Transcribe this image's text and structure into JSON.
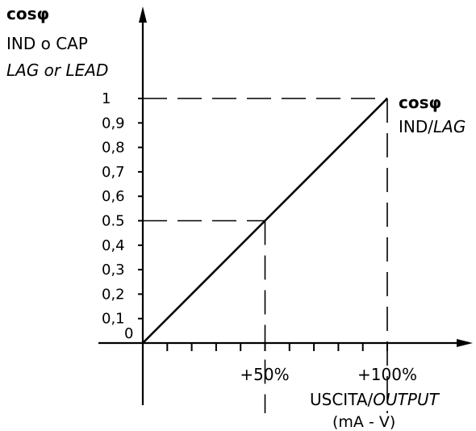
{
  "y_axis": {
    "title_line1": "cosφ",
    "title_line2": "IND o CAP",
    "title_line3": "LAG or LEAD",
    "ticks": [
      "0",
      "0,1",
      "0,2",
      "0,3",
      "0,4",
      "0.5",
      "0,6",
      "0,7",
      "0,8",
      "0,9",
      "1"
    ]
  },
  "x_axis": {
    "tick_50": "+50%",
    "tick_100": "+100%",
    "label_line1_a": "USCITA/",
    "label_line1_b": "OUTPUT",
    "label_line2": "(mA - V)"
  },
  "end_label": {
    "line1": "cosφ",
    "line2_a": "IND/",
    "line2_b": "LAG"
  },
  "chart_data": {
    "type": "line",
    "series": [
      {
        "x": [
          0,
          50,
          100
        ],
        "y": [
          0,
          0.5,
          1
        ]
      }
    ],
    "xlim": [
      0,
      100
    ],
    "ylim": [
      0,
      1
    ],
    "guides": [
      {
        "x": 50,
        "y": 0.5
      },
      {
        "x": 100,
        "y": 1
      }
    ]
  }
}
